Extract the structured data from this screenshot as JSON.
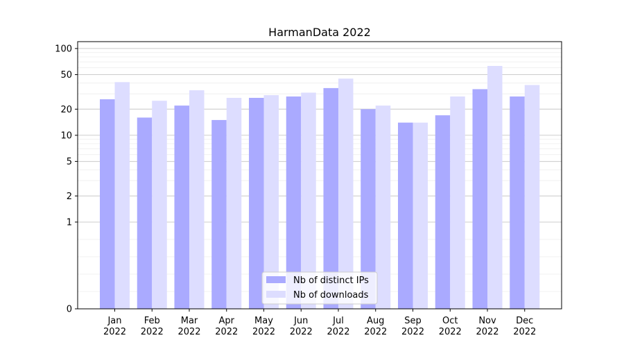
{
  "chart_data": {
    "type": "bar",
    "title": "HarmanData 2022",
    "xlabel": "",
    "ylabel": "",
    "y_scale": "symlog",
    "ylim": [
      0,
      120
    ],
    "y_ticks": [
      0,
      1,
      2,
      5,
      10,
      20,
      50,
      100
    ],
    "y_tick_labels": [
      "0",
      "1",
      "2",
      "5",
      "10",
      "20",
      "50",
      "100"
    ],
    "categories": [
      "Jan\n2022",
      "Feb\n2022",
      "Mar\n2022",
      "Apr\n2022",
      "May\n2022",
      "Jun\n2022",
      "Jul\n2022",
      "Aug\n2022",
      "Sep\n2022",
      "Oct\n2022",
      "Nov\n2022",
      "Dec\n2022"
    ],
    "category_lines": [
      [
        "Jan",
        "2022"
      ],
      [
        "Feb",
        "2022"
      ],
      [
        "Mar",
        "2022"
      ],
      [
        "Apr",
        "2022"
      ],
      [
        "May",
        "2022"
      ],
      [
        "Jun",
        "2022"
      ],
      [
        "Jul",
        "2022"
      ],
      [
        "Aug",
        "2022"
      ],
      [
        "Sep",
        "2022"
      ],
      [
        "Oct",
        "2022"
      ],
      [
        "Nov",
        "2022"
      ],
      [
        "Dec",
        "2022"
      ]
    ],
    "series": [
      {
        "name": "Nb of distinct IPs",
        "color": "#aaaaff",
        "values": [
          26,
          16,
          22,
          15,
          27,
          28,
          35,
          20,
          14,
          17,
          34,
          28
        ]
      },
      {
        "name": "Nb of downloads",
        "color": "#ddddff",
        "values": [
          41,
          25,
          33,
          27,
          29,
          31,
          45,
          22,
          14,
          28,
          63,
          38
        ]
      }
    ],
    "grid": "horizontal (major and minor)",
    "legend": {
      "position": "lower center"
    }
  }
}
